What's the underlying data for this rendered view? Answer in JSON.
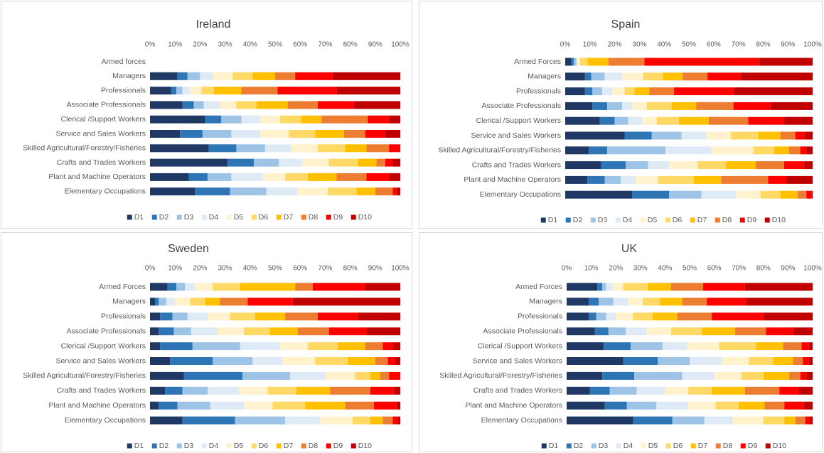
{
  "chart_data": [
    {
      "type": "bar",
      "orientation": "horizontal",
      "stacked": true,
      "legend": "bottom",
      "title": "Ireland",
      "categories": [
        "Armed forces",
        "Managers",
        "Professionals",
        "Associate Professionals",
        "Clerical /Support Workers",
        "Service and Sales Workers",
        "Skilled Agricultural/Forestry/Fisheries",
        "Crafts and Trades Workers",
        "Plant and Machine Operators",
        "Elementary Occupations"
      ],
      "xlim": [
        0,
        100
      ],
      "xticks": [
        {
          "value": 0,
          "label": "0%"
        },
        {
          "value": 10,
          "label": "10%"
        },
        {
          "value": 20,
          "label": "20%"
        },
        {
          "value": 30,
          "label": "30%"
        },
        {
          "value": 40,
          "label": "40%"
        },
        {
          "value": 50,
          "label": "50%"
        },
        {
          "value": 60,
          "label": "60%"
        },
        {
          "value": 70,
          "label": "70%"
        },
        {
          "value": 80,
          "label": "80%"
        },
        {
          "value": 90,
          "label": "90%"
        },
        {
          "value": 100,
          "label": "100%"
        }
      ],
      "series": [
        {
          "name": "D1",
          "color": "#1f3864",
          "values": [
            null,
            11,
            8.5,
            13,
            22,
            12,
            23.5,
            31,
            15.5,
            18
          ]
        },
        {
          "name": "D2",
          "color": "#2e75b6",
          "values": [
            null,
            4,
            2,
            4.5,
            6.5,
            9,
            11,
            10.5,
            7.5,
            14
          ]
        },
        {
          "name": "D3",
          "color": "#9dc3e6",
          "values": [
            null,
            5,
            2.5,
            4,
            8,
            11.5,
            11.5,
            10,
            9.5,
            14.5
          ]
        },
        {
          "name": "D4",
          "color": "#deebf7",
          "values": [
            null,
            5,
            3,
            6.5,
            7.5,
            11.5,
            10.5,
            9.5,
            12.5,
            12.5
          ]
        },
        {
          "name": "D5",
          "color": "#fff2cc",
          "values": [
            null,
            8,
            4.5,
            6.5,
            8,
            11.5,
            10.5,
            10.5,
            9,
            12
          ]
        },
        {
          "name": "D6",
          "color": "#ffd966",
          "values": [
            null,
            8,
            5,
            8,
            8.5,
            10.5,
            11,
            11.5,
            9,
            11.5
          ]
        },
        {
          "name": "D7",
          "color": "#ffc000",
          "values": [
            null,
            9,
            11,
            12.5,
            8,
            11.5,
            8.5,
            7.5,
            11.5,
            7.5
          ]
        },
        {
          "name": "D8",
          "color": "#ed7d31",
          "values": [
            null,
            8,
            14.5,
            12,
            18.5,
            8.5,
            9,
            3.5,
            12,
            7
          ]
        },
        {
          "name": "D9",
          "color": "#ff0000",
          "values": [
            null,
            15,
            23.5,
            14.5,
            8.5,
            8,
            4,
            3,
            9,
            1.5
          ]
        },
        {
          "name": "D10",
          "color": "#c00000",
          "values": [
            null,
            27,
            25.5,
            18.5,
            4.5,
            6,
            0.5,
            3,
            4.5,
            1.5
          ]
        }
      ]
    },
    {
      "type": "bar",
      "orientation": "horizontal",
      "stacked": true,
      "legend": "bottom",
      "title": "Spain",
      "categories": [
        "Armed Forces",
        "Managers",
        "Professionals",
        "Associate Professionals",
        "Clerical /Support Workers",
        "Service and Sales Workers",
        "Skilled Agricultural/Forestry/Fisheries",
        "Crafts and Trades Workers",
        "Plant and Machine Operators",
        "Elementary Occupations"
      ],
      "xlim": [
        0,
        100
      ],
      "xticks": [
        {
          "value": 0,
          "label": "0%"
        },
        {
          "value": 10,
          "label": "10%"
        },
        {
          "value": 20,
          "label": "20%"
        },
        {
          "value": 30,
          "label": "30%"
        },
        {
          "value": 40,
          "label": "40%"
        },
        {
          "value": 50,
          "label": "50%"
        },
        {
          "value": 60,
          "label": "60%"
        },
        {
          "value": 70,
          "label": "70%"
        },
        {
          "value": 80,
          "label": "80%"
        },
        {
          "value": 90,
          "label": "90%"
        },
        {
          "value": 100,
          "label": "100%"
        }
      ],
      "series": [
        {
          "name": "D1",
          "color": "#1f3864",
          "values": [
            2.5,
            8,
            8,
            11,
            14,
            24,
            9.5,
            14.5,
            9,
            27
          ]
        },
        {
          "name": "D2",
          "color": "#2e75b6",
          "values": [
            1,
            2.5,
            3,
            6,
            6,
            11,
            7.5,
            10,
            7,
            15
          ]
        },
        {
          "name": "D3",
          "color": "#9dc3e6",
          "values": [
            1,
            5.5,
            4,
            6,
            5.5,
            12,
            23.5,
            9,
            6.5,
            13
          ]
        },
        {
          "name": "D4",
          "color": "#deebf7",
          "values": [
            0.5,
            7,
            4,
            4,
            5.5,
            10,
            18.5,
            8.5,
            6,
            14
          ]
        },
        {
          "name": "D5",
          "color": "#fff2cc",
          "values": [
            1,
            8.5,
            5,
            6,
            6,
            10,
            17,
            11.5,
            9,
            10
          ]
        },
        {
          "name": "D6",
          "color": "#ffd966",
          "values": [
            3,
            8,
            4,
            10,
            9,
            11,
            8.5,
            11.5,
            14.5,
            8
          ]
        },
        {
          "name": "D7",
          "color": "#ffc000",
          "values": [
            8.5,
            8,
            6,
            10,
            12,
            9,
            6,
            12,
            11,
            7
          ]
        },
        {
          "name": "D8",
          "color": "#ed7d31",
          "values": [
            14.5,
            10,
            10,
            15,
            16,
            6,
            4.5,
            11.5,
            19,
            3.5
          ]
        },
        {
          "name": "D9",
          "color": "#ff0000",
          "values": [
            46.5,
            13.5,
            24,
            15,
            14.5,
            4,
            2.5,
            8,
            7.5,
            2
          ]
        },
        {
          "name": "D10",
          "color": "#c00000",
          "values": [
            21.5,
            29,
            32,
            17,
            11.5,
            3,
            2.5,
            3.5,
            10.5,
            0.5
          ]
        }
      ]
    },
    {
      "type": "bar",
      "orientation": "horizontal",
      "stacked": true,
      "legend": "bottom",
      "title": "Sweden",
      "categories": [
        "Armed Forces",
        "Managers",
        "Professionals",
        "Associate Professionals",
        "Clerical /Support Workers",
        "Service and Sales Workers",
        "Skilled Agricultural/Forestry/Fisheries",
        "Crafts and Trades Workers",
        "Plant and Machine Operators",
        "Elementary Occupations"
      ],
      "xlim": [
        0,
        100
      ],
      "xticks": [
        {
          "value": 0,
          "label": "0%"
        },
        {
          "value": 10,
          "label": "10%"
        },
        {
          "value": 20,
          "label": "20%"
        },
        {
          "value": 30,
          "label": "30%"
        },
        {
          "value": 40,
          "label": "40%"
        },
        {
          "value": 50,
          "label": "50%"
        },
        {
          "value": 60,
          "label": "60%"
        },
        {
          "value": 70,
          "label": "70%"
        },
        {
          "value": 80,
          "label": "80%"
        },
        {
          "value": 90,
          "label": "90%"
        },
        {
          "value": 100,
          "label": "100%"
        }
      ],
      "series": [
        {
          "name": "D1",
          "color": "#1f3864",
          "values": [
            7,
            2,
            4,
            3.5,
            4,
            8,
            13.5,
            6,
            3.5,
            13
          ]
        },
        {
          "name": "D2",
          "color": "#2e75b6",
          "values": [
            3.5,
            1.5,
            5,
            6,
            13,
            17,
            23.5,
            7,
            7.5,
            21
          ]
        },
        {
          "name": "D3",
          "color": "#9dc3e6",
          "values": [
            3.5,
            3,
            6,
            7,
            19,
            16,
            19,
            10,
            13,
            20
          ]
        },
        {
          "name": "D4",
          "color": "#deebf7",
          "values": [
            4,
            3.5,
            8,
            10.5,
            16,
            12,
            14,
            12.5,
            13.5,
            14
          ]
        },
        {
          "name": "D5",
          "color": "#fff2cc",
          "values": [
            7,
            6,
            9,
            10.5,
            11,
            13,
            12,
            11.5,
            11.5,
            13
          ]
        },
        {
          "name": "D6",
          "color": "#ffd966",
          "values": [
            11,
            6,
            10,
            10.5,
            12,
            13,
            6,
            11.5,
            13,
            7
          ]
        },
        {
          "name": "D7",
          "color": "#ffc000",
          "values": [
            22,
            6,
            12,
            11,
            11,
            11,
            4,
            13.5,
            16,
            5
          ]
        },
        {
          "name": "D8",
          "color": "#ed7d31",
          "values": [
            7,
            11,
            13,
            12.5,
            7,
            5,
            3.5,
            16,
            11.5,
            4
          ]
        },
        {
          "name": "D9",
          "color": "#ff0000",
          "values": [
            21,
            18,
            16,
            15,
            4,
            3,
            4,
            9.5,
            9,
            2
          ]
        },
        {
          "name": "D10",
          "color": "#c00000",
          "values": [
            14,
            43,
            17,
            13.5,
            3,
            2,
            0.5,
            2.5,
            1.5,
            1
          ]
        }
      ]
    },
    {
      "type": "bar",
      "orientation": "horizontal",
      "stacked": true,
      "legend": "bottom",
      "title": "UK",
      "categories": [
        "Armed Forces",
        "Managers",
        "Professionals",
        "Associate Professionals",
        "Clerical /Support Workers",
        "Service and Sales Workers",
        "Skilled Agricultural/Forestry/Fisheries",
        "Crafts and Trades Workers",
        "Plant and Machine Operators",
        "Elementary Occupations"
      ],
      "xlim": [
        0,
        100
      ],
      "xticks": [
        {
          "value": 0,
          "label": "0%"
        },
        {
          "value": 10,
          "label": "10%"
        },
        {
          "value": 20,
          "label": "20%"
        },
        {
          "value": 30,
          "label": "30%"
        },
        {
          "value": 40,
          "label": "40%"
        },
        {
          "value": 50,
          "label": "50%"
        },
        {
          "value": 60,
          "label": "60%"
        },
        {
          "value": 70,
          "label": "70%"
        },
        {
          "value": 80,
          "label": "80%"
        },
        {
          "value": 90,
          "label": "90%"
        },
        {
          "value": 100,
          "label": "100%"
        }
      ],
      "series": [
        {
          "name": "D1",
          "color": "#1f3864",
          "values": [
            12.5,
            9,
            9,
            11.5,
            15,
            23,
            14.5,
            9.5,
            15.5,
            27
          ]
        },
        {
          "name": "D2",
          "color": "#2e75b6",
          "values": [
            2,
            4,
            3,
            5.5,
            11,
            14,
            13,
            8,
            9,
            16
          ]
        },
        {
          "name": "D3",
          "color": "#9dc3e6",
          "values": [
            1.5,
            6,
            4,
            7,
            13,
            13,
            19.5,
            11,
            12,
            13
          ]
        },
        {
          "name": "D4",
          "color": "#deebf7",
          "values": [
            2.5,
            6,
            4,
            8.5,
            10,
            13,
            13,
            11.5,
            13,
            11.5
          ]
        },
        {
          "name": "D5",
          "color": "#fff2cc",
          "values": [
            4.5,
            6,
            7,
            10,
            13,
            11,
            11,
            9.5,
            11,
            12.5
          ]
        },
        {
          "name": "D6",
          "color": "#ffd966",
          "values": [
            10,
            7,
            8,
            12.5,
            15,
            10,
            9,
            9.5,
            9.5,
            8.5
          ]
        },
        {
          "name": "D7",
          "color": "#ffc000",
          "values": [
            9.5,
            9,
            10,
            13.5,
            11,
            8,
            10.5,
            13.5,
            10.5,
            4.5
          ]
        },
        {
          "name": "D8",
          "color": "#ed7d31",
          "values": [
            13,
            10,
            14,
            12.5,
            7.5,
            4,
            4.5,
            14,
            8,
            4
          ]
        },
        {
          "name": "D9",
          "color": "#ff0000",
          "values": [
            17,
            16,
            21,
            11,
            3,
            2.5,
            2.5,
            8,
            8,
            2
          ]
        },
        {
          "name": "D10",
          "color": "#c00000",
          "values": [
            27.5,
            27,
            20,
            8,
            1.5,
            1.5,
            2.5,
            5.5,
            3.5,
            1
          ]
        }
      ]
    }
  ]
}
